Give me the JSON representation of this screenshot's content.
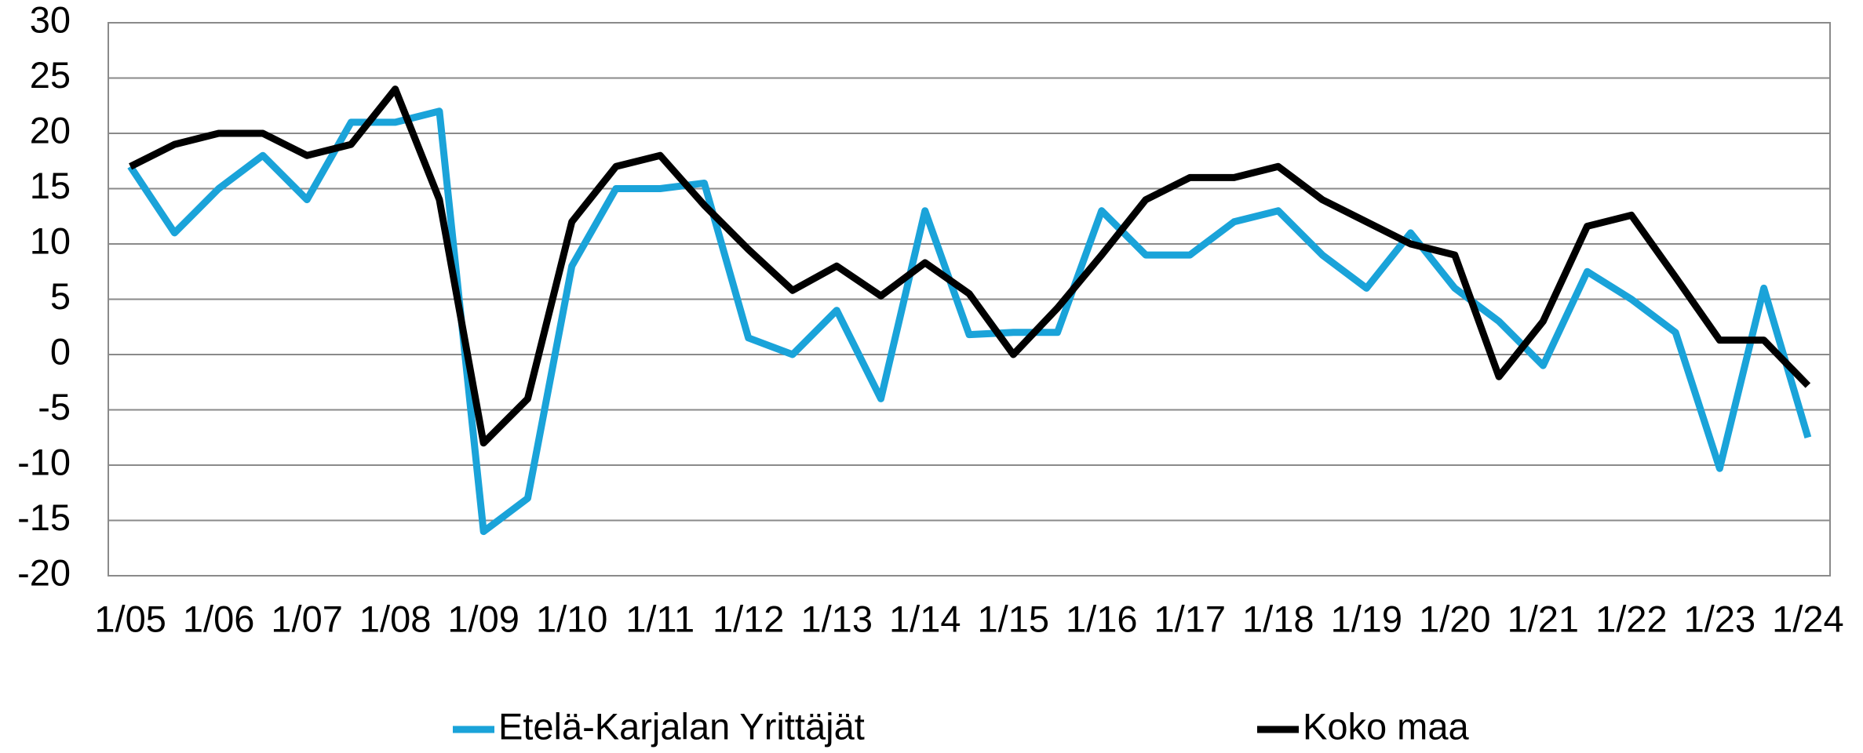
{
  "chart_data": {
    "type": "line",
    "categories": [
      "1/05",
      null,
      "1/06",
      null,
      "1/07",
      null,
      "1/08",
      null,
      "1/09",
      null,
      "1/10",
      null,
      "1/11",
      null,
      "1/12",
      null,
      "1/13",
      null,
      "1/14",
      null,
      "1/15",
      null,
      "1/16",
      null,
      "1/17",
      null,
      "1/18",
      null,
      "1/19",
      null,
      "1/20",
      null,
      "1/21",
      null,
      "1/22",
      null,
      "1/23",
      null,
      "1/24"
    ],
    "series": [
      {
        "name": "Etelä-Karjalan Yrittäjät",
        "color": "#1aa3d9",
        "values": [
          17,
          11,
          15,
          18,
          14,
          21,
          21,
          22,
          -16,
          -13,
          8,
          15,
          15,
          15.5,
          1.5,
          0,
          4,
          -4,
          13,
          1.8,
          2,
          2,
          13,
          9,
          9,
          12,
          13,
          9,
          6,
          11,
          6,
          3,
          -1,
          7.5,
          5,
          2,
          -10.3,
          6,
          -7.5
        ]
      },
      {
        "name": "Koko maa",
        "color": "#000000",
        "values": [
          17,
          19,
          20,
          20,
          18,
          19,
          24,
          14,
          -8,
          -4,
          12,
          17,
          18,
          13.5,
          9.5,
          5.8,
          8,
          5.3,
          8.3,
          5.5,
          0,
          4.2,
          9,
          14,
          16,
          16,
          17,
          14,
          12,
          10,
          9,
          -2,
          3,
          11.6,
          12.6,
          7,
          1.3,
          1.3,
          -2.8
        ]
      }
    ],
    "ylim": [
      -20,
      30
    ],
    "yticks": [
      -20,
      -15,
      -10,
      -5,
      0,
      5,
      10,
      15,
      20,
      25,
      30
    ],
    "grid": true
  }
}
